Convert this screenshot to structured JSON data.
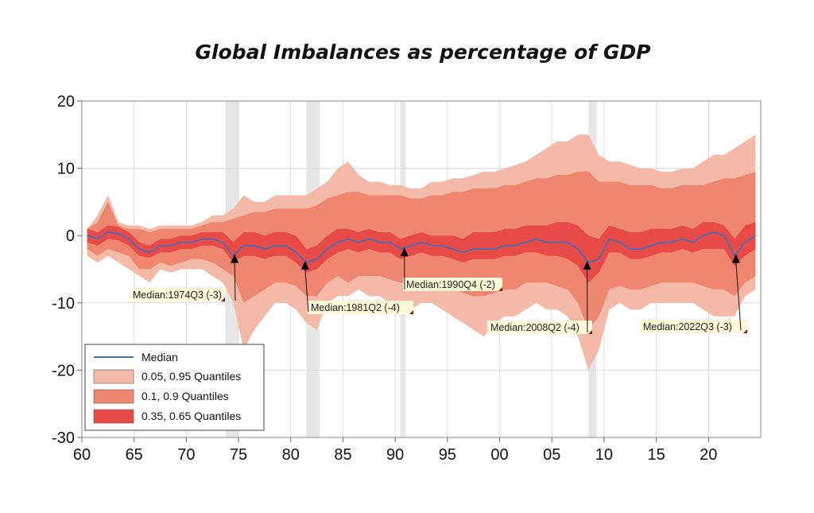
{
  "chart_data": {
    "type": "area",
    "title": "Global Imbalances as percentage of GDP",
    "xlabel": "",
    "ylabel": "",
    "xlim": [
      1960,
      2025
    ],
    "ylim": [
      -30,
      20
    ],
    "grid": true,
    "legend_position": "bottom-left",
    "x_tick_labels": [
      "60",
      "65",
      "70",
      "75",
      "80",
      "85",
      "90",
      "95",
      "00",
      "05",
      "10",
      "15",
      "20"
    ],
    "x_tick_values": [
      1960,
      1965,
      1970,
      1975,
      1980,
      1985,
      1990,
      1995,
      2000,
      2005,
      2010,
      2015,
      2020
    ],
    "y_tick_labels": [
      "20",
      "10",
      "0",
      "-10",
      "-20",
      "-30"
    ],
    "y_tick_values": [
      20,
      10,
      0,
      -10,
      -20,
      -30
    ],
    "colors": {
      "median": "#4a6fb5",
      "q05_95": "#f5b9a8",
      "q10_90": "#ef8770",
      "q35_65": "#e84b47",
      "recession": "#e6e6e6"
    },
    "recessions": [
      [
        1973.75,
        1975.0
      ],
      [
        1981.5,
        1982.75
      ],
      [
        1990.5,
        1991.0
      ],
      [
        2008.5,
        2009.25
      ]
    ],
    "x": [
      1960,
      1961,
      1962,
      1963,
      1964,
      1965,
      1966,
      1967,
      1968,
      1969,
      1970,
      1971,
      1972,
      1973,
      1974,
      1975,
      1976,
      1977,
      1978,
      1979,
      1980,
      1981,
      1982,
      1983,
      1984,
      1985,
      1986,
      1987,
      1988,
      1989,
      1990,
      1991,
      1992,
      1993,
      1994,
      1995,
      1996,
      1997,
      1998,
      1999,
      2000,
      2001,
      2002,
      2003,
      2004,
      2005,
      2006,
      2007,
      2008,
      2009,
      2010,
      2011,
      2012,
      2013,
      2014,
      2015,
      2016,
      2017,
      2018,
      2019,
      2020,
      2021,
      2022,
      2023,
      2024
    ],
    "series": [
      {
        "name": "Median",
        "kind": "line",
        "values": [
          0,
          -0.5,
          0.5,
          0.3,
          -0.5,
          -2,
          -2.5,
          -1.5,
          -1.5,
          -1,
          -1,
          -0.5,
          -0.5,
          -1,
          -3,
          -1.5,
          -1.5,
          -2,
          -1.5,
          -1.5,
          -2.5,
          -4,
          -3.5,
          -2,
          -1,
          -0.5,
          -1,
          -0.5,
          -1,
          -1,
          -2,
          -1.5,
          -1,
          -1.5,
          -1.5,
          -2,
          -2.5,
          -2,
          -2,
          -2,
          -1.5,
          -1.5,
          -1,
          -0.5,
          -1,
          -1,
          -1,
          -2,
          -4,
          -3.5,
          -0.5,
          -1,
          -2,
          -2,
          -1.5,
          -1,
          -1,
          -0.5,
          -1,
          0,
          0.5,
          0,
          -3,
          -1,
          0
        ]
      },
      {
        "name": "0.05, 0.95 Quantiles",
        "kind": "band",
        "lower": [
          -3,
          -4,
          -3,
          -4,
          -5,
          -6,
          -7,
          -5,
          -5.5,
          -5,
          -5,
          -5,
          -6,
          -7,
          -10,
          -17,
          -14,
          -12,
          -10,
          -10,
          -11,
          -13,
          -14,
          -10,
          -9,
          -9,
          -8,
          -9,
          -9,
          -10,
          -10,
          -11,
          -10,
          -10,
          -11,
          -12,
          -13,
          -14,
          -15,
          -13,
          -12,
          -12,
          -11,
          -10,
          -11,
          -11,
          -12,
          -15,
          -20,
          -17,
          -11,
          -10,
          -11,
          -11,
          -10,
          -10,
          -10,
          -10,
          -10,
          -11,
          -12,
          -12,
          -12,
          -9,
          -8
        ],
        "upper": [
          1,
          3,
          6,
          2,
          1.5,
          1.5,
          1,
          1.5,
          1.5,
          1.5,
          1.5,
          2,
          3,
          3,
          4,
          6,
          5,
          5,
          6,
          6,
          6,
          6,
          7,
          8,
          10,
          11,
          9,
          8,
          8,
          7.5,
          7.5,
          7,
          7,
          8,
          8,
          8.5,
          8.5,
          9,
          9.5,
          9.5,
          10,
          10.5,
          11,
          12,
          13,
          14,
          14,
          15,
          15,
          12,
          11,
          11,
          10.5,
          10,
          10,
          9.5,
          9.5,
          10,
          10,
          11,
          12,
          12,
          13,
          14,
          15
        ]
      },
      {
        "name": "0.1, 0.9 Quantiles",
        "kind": "band",
        "lower": [
          -2,
          -3,
          -2,
          -2.5,
          -3,
          -5,
          -5,
          -4,
          -4.5,
          -4,
          -3.5,
          -3.5,
          -4,
          -5,
          -6,
          -10,
          -9,
          -8,
          -7,
          -7,
          -7.5,
          -9,
          -9,
          -7,
          -6,
          -7,
          -6,
          -6,
          -6,
          -6.5,
          -7,
          -7,
          -6.5,
          -7,
          -7.5,
          -8,
          -8.5,
          -9,
          -9,
          -8.5,
          -8,
          -8,
          -7,
          -7,
          -7,
          -7.5,
          -8,
          -10,
          -14,
          -12,
          -8,
          -7.5,
          -8,
          -8,
          -7.5,
          -7,
          -7,
          -7,
          -7,
          -7.5,
          -8,
          -8,
          -9,
          -7,
          -6
        ],
        "upper": [
          1,
          2,
          5,
          1.5,
          1,
          1,
          0.5,
          1,
          1,
          1,
          1,
          1.5,
          2,
          2,
          2.5,
          3,
          3.5,
          3.5,
          4,
          4,
          4,
          4,
          4.5,
          5.5,
          6,
          6.5,
          6.5,
          6,
          6,
          6,
          6,
          5.5,
          5.5,
          6,
          6,
          6.5,
          6.5,
          7,
          7,
          7,
          7.5,
          7.5,
          8,
          8.5,
          8.5,
          9,
          9,
          9.5,
          9.5,
          8,
          8,
          8,
          7.5,
          7.5,
          7.5,
          7,
          7,
          7.5,
          7.5,
          7.5,
          8,
          8.5,
          8.5,
          9,
          9.5
        ]
      },
      {
        "name": "0.35, 0.65 Quantiles",
        "kind": "band",
        "lower": [
          -1,
          -1.5,
          -0.5,
          -0.7,
          -1.5,
          -3,
          -3.3,
          -2.5,
          -2.5,
          -2,
          -2,
          -1.5,
          -1.5,
          -2,
          -4,
          -3,
          -3,
          -3.5,
          -3,
          -3,
          -4,
          -5.5,
          -5,
          -3.5,
          -2.5,
          -2,
          -2.5,
          -2,
          -2.5,
          -2.5,
          -3.5,
          -3,
          -2.5,
          -3,
          -3,
          -3.5,
          -4,
          -3.5,
          -3.5,
          -3.5,
          -3,
          -3,
          -2.5,
          -2.5,
          -3,
          -3,
          -3.5,
          -4.5,
          -7,
          -5.5,
          -2.5,
          -2.5,
          -3.5,
          -3.5,
          -3,
          -2.5,
          -2.5,
          -2,
          -2.5,
          -2,
          -2,
          -2,
          -4.5,
          -3,
          -2
        ],
        "upper": [
          1,
          0.5,
          1.5,
          1.3,
          0.5,
          -1,
          -1.5,
          -0.5,
          -0.5,
          0,
          0,
          0.5,
          0.5,
          0.5,
          -1,
          0.5,
          0.5,
          0,
          0.5,
          0.5,
          0,
          -2,
          -1.5,
          0,
          1,
          1,
          0.5,
          1,
          0.5,
          0.5,
          -0.5,
          0,
          0.5,
          0,
          0,
          0,
          -0.5,
          0.5,
          0.5,
          0.5,
          1,
          1,
          1.5,
          1.5,
          1.5,
          2,
          2,
          1.5,
          0,
          -0.5,
          1.5,
          1,
          0.5,
          0.5,
          1,
          1,
          1,
          1.5,
          1,
          2,
          2,
          1.5,
          -0.5,
          1.5,
          2
        ]
      }
    ],
    "annotations": [
      {
        "text": "Median:1974Q3 (-3)",
        "x": 1974.5,
        "y": -3
      },
      {
        "text": "Median:1981Q2 (-4)",
        "x": 1981.25,
        "y": -4
      },
      {
        "text": "Median:1990Q4 (-2)",
        "x": 1990.75,
        "y": -2
      },
      {
        "text": "Median:2008Q2 (-4)",
        "x": 2008.25,
        "y": -4
      },
      {
        "text": "Median:2022Q3 (-3)",
        "x": 2022.5,
        "y": -3
      }
    ],
    "legend": [
      "Median",
      "0.05, 0.95 Quantiles",
      "0.1, 0.9 Quantiles",
      "0.35, 0.65 Quantiles"
    ]
  }
}
